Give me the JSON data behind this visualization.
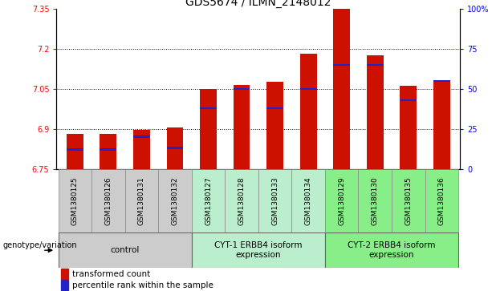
{
  "title": "GDS5674 / ILMN_2148012",
  "samples": [
    "GSM1380125",
    "GSM1380126",
    "GSM1380131",
    "GSM1380132",
    "GSM1380127",
    "GSM1380128",
    "GSM1380133",
    "GSM1380134",
    "GSM1380129",
    "GSM1380130",
    "GSM1380135",
    "GSM1380136"
  ],
  "transformed_counts": [
    6.882,
    6.882,
    6.895,
    6.905,
    7.05,
    7.065,
    7.075,
    7.18,
    7.35,
    7.175,
    7.06,
    7.075
  ],
  "percentile_ranks": [
    12,
    12,
    20,
    13,
    38,
    50,
    38,
    50,
    65,
    65,
    43,
    55
  ],
  "base_value": 6.75,
  "ylim_left": [
    6.75,
    7.35
  ],
  "ylim_right": [
    0,
    100
  ],
  "yticks_left": [
    6.75,
    6.9,
    7.05,
    7.2,
    7.35
  ],
  "ytick_labels_left": [
    "6.75",
    "6.9",
    "7.05",
    "7.2",
    "7.35"
  ],
  "yticks_right": [
    0,
    25,
    50,
    75,
    100
  ],
  "ytick_labels_right": [
    "0",
    "25",
    "50",
    "75",
    "100%"
  ],
  "grid_values": [
    6.9,
    7.05,
    7.2
  ],
  "bar_color": "#cc1100",
  "blue_color": "#2222cc",
  "group_colors": [
    "#cccccc",
    "#cccccc",
    "#cccccc",
    "#cccccc",
    "#bbeecc",
    "#bbeecc",
    "#bbeecc",
    "#bbeecc",
    "#88ee88",
    "#88ee88",
    "#88ee88",
    "#88ee88"
  ],
  "group_info": [
    {
      "label": "control",
      "start": 0,
      "end": 3,
      "color": "#cccccc"
    },
    {
      "label": "CYT-1 ERBB4 isoform\nexpression",
      "start": 4,
      "end": 7,
      "color": "#bbeecc"
    },
    {
      "label": "CYT-2 ERBB4 isoform\nexpression",
      "start": 8,
      "end": 11,
      "color": "#88ee88"
    }
  ],
  "legend_items": [
    {
      "label": "transformed count",
      "color": "#cc1100"
    },
    {
      "label": "percentile rank within the sample",
      "color": "#2222cc"
    }
  ],
  "genotype_label": "genotype/variation",
  "title_fontsize": 10,
  "tick_fontsize": 7,
  "sample_fontsize": 6.5,
  "bar_width": 0.5
}
